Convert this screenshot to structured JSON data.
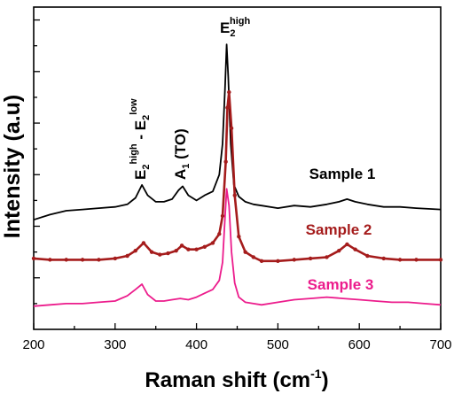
{
  "chart_data": {
    "type": "line",
    "xlabel": "Raman shift (cm",
    "xlabel_sup": "-1",
    "xlabel_close": ")",
    "ylabel": "Intensity (a.u)",
    "xlim": [
      200,
      700
    ],
    "ylim": [
      0,
      12.5
    ],
    "xticks": [
      200,
      300,
      400,
      500,
      600,
      700
    ],
    "y_tick_labels_shown": false,
    "grid": false,
    "annotations": [
      {
        "id": "e2high",
        "base": "E",
        "sub": "2",
        "sup": "high",
        "x": 437
      },
      {
        "id": "a1to",
        "base": "A",
        "sub": "1",
        "tail": " (TO)",
        "x": 382
      },
      {
        "id": "e2diff",
        "base": "E",
        "sub": "2",
        "sup": "high",
        "mid": " - E",
        "sub2": "2",
        "sup2": "low",
        "x": 333
      }
    ],
    "series": [
      {
        "name": "Sample 1",
        "color": "#000000",
        "x": [
          200,
          220,
          240,
          260,
          280,
          300,
          315,
          325,
          333,
          340,
          350,
          360,
          370,
          378,
          383,
          390,
          400,
          410,
          420,
          428,
          432,
          435,
          437,
          439,
          442,
          446,
          452,
          460,
          470,
          480,
          500,
          520,
          540,
          560,
          575,
          585,
          595,
          610,
          630,
          650,
          670,
          700
        ],
        "y": [
          4.25,
          4.45,
          4.6,
          4.65,
          4.7,
          4.75,
          4.85,
          5.1,
          5.6,
          5.2,
          4.95,
          4.95,
          5.05,
          5.4,
          5.55,
          5.2,
          5.0,
          5.2,
          5.35,
          6.0,
          7.2,
          9.3,
          11.05,
          9.8,
          7.2,
          5.6,
          5.15,
          4.95,
          4.85,
          4.8,
          4.7,
          4.8,
          4.75,
          4.85,
          4.95,
          5.05,
          4.95,
          4.85,
          4.75,
          4.75,
          4.7,
          4.65
        ]
      },
      {
        "name": "Sample 2",
        "color": "#a51c1c",
        "x": [
          200,
          220,
          240,
          260,
          280,
          300,
          315,
          325,
          335,
          345,
          355,
          365,
          375,
          382,
          390,
          400,
          410,
          420,
          428,
          432,
          436,
          438,
          440,
          443,
          447,
          452,
          460,
          470,
          480,
          500,
          520,
          540,
          560,
          575,
          585,
          595,
          610,
          630,
          650,
          670,
          700
        ],
        "y": [
          2.75,
          2.7,
          2.7,
          2.7,
          2.7,
          2.75,
          2.85,
          3.05,
          3.35,
          3.0,
          2.9,
          2.95,
          3.05,
          3.25,
          3.1,
          3.1,
          3.2,
          3.35,
          3.7,
          4.4,
          6.5,
          8.6,
          9.2,
          7.8,
          5.2,
          3.6,
          3.0,
          2.8,
          2.65,
          2.65,
          2.7,
          2.75,
          2.8,
          3.05,
          3.3,
          3.1,
          2.85,
          2.75,
          2.7,
          2.7,
          2.7
        ]
      },
      {
        "name": "Sample 3",
        "color": "#ec1c8c",
        "x": [
          200,
          220,
          240,
          260,
          280,
          300,
          315,
          325,
          333,
          340,
          350,
          360,
          370,
          380,
          390,
          400,
          410,
          420,
          428,
          432,
          435,
          437,
          440,
          443,
          447,
          452,
          460,
          470,
          480,
          500,
          520,
          540,
          560,
          580,
          600,
          620,
          640,
          660,
          680,
          700
        ],
        "y": [
          0.9,
          0.95,
          1.0,
          1.0,
          1.05,
          1.1,
          1.3,
          1.55,
          1.75,
          1.35,
          1.1,
          1.1,
          1.15,
          1.2,
          1.15,
          1.25,
          1.4,
          1.55,
          1.9,
          2.6,
          4.3,
          5.45,
          4.8,
          3.0,
          1.8,
          1.25,
          1.05,
          1.0,
          0.95,
          1.05,
          1.15,
          1.2,
          1.25,
          1.2,
          1.15,
          1.1,
          1.05,
          1.05,
          1.0,
          0.95
        ]
      }
    ]
  }
}
